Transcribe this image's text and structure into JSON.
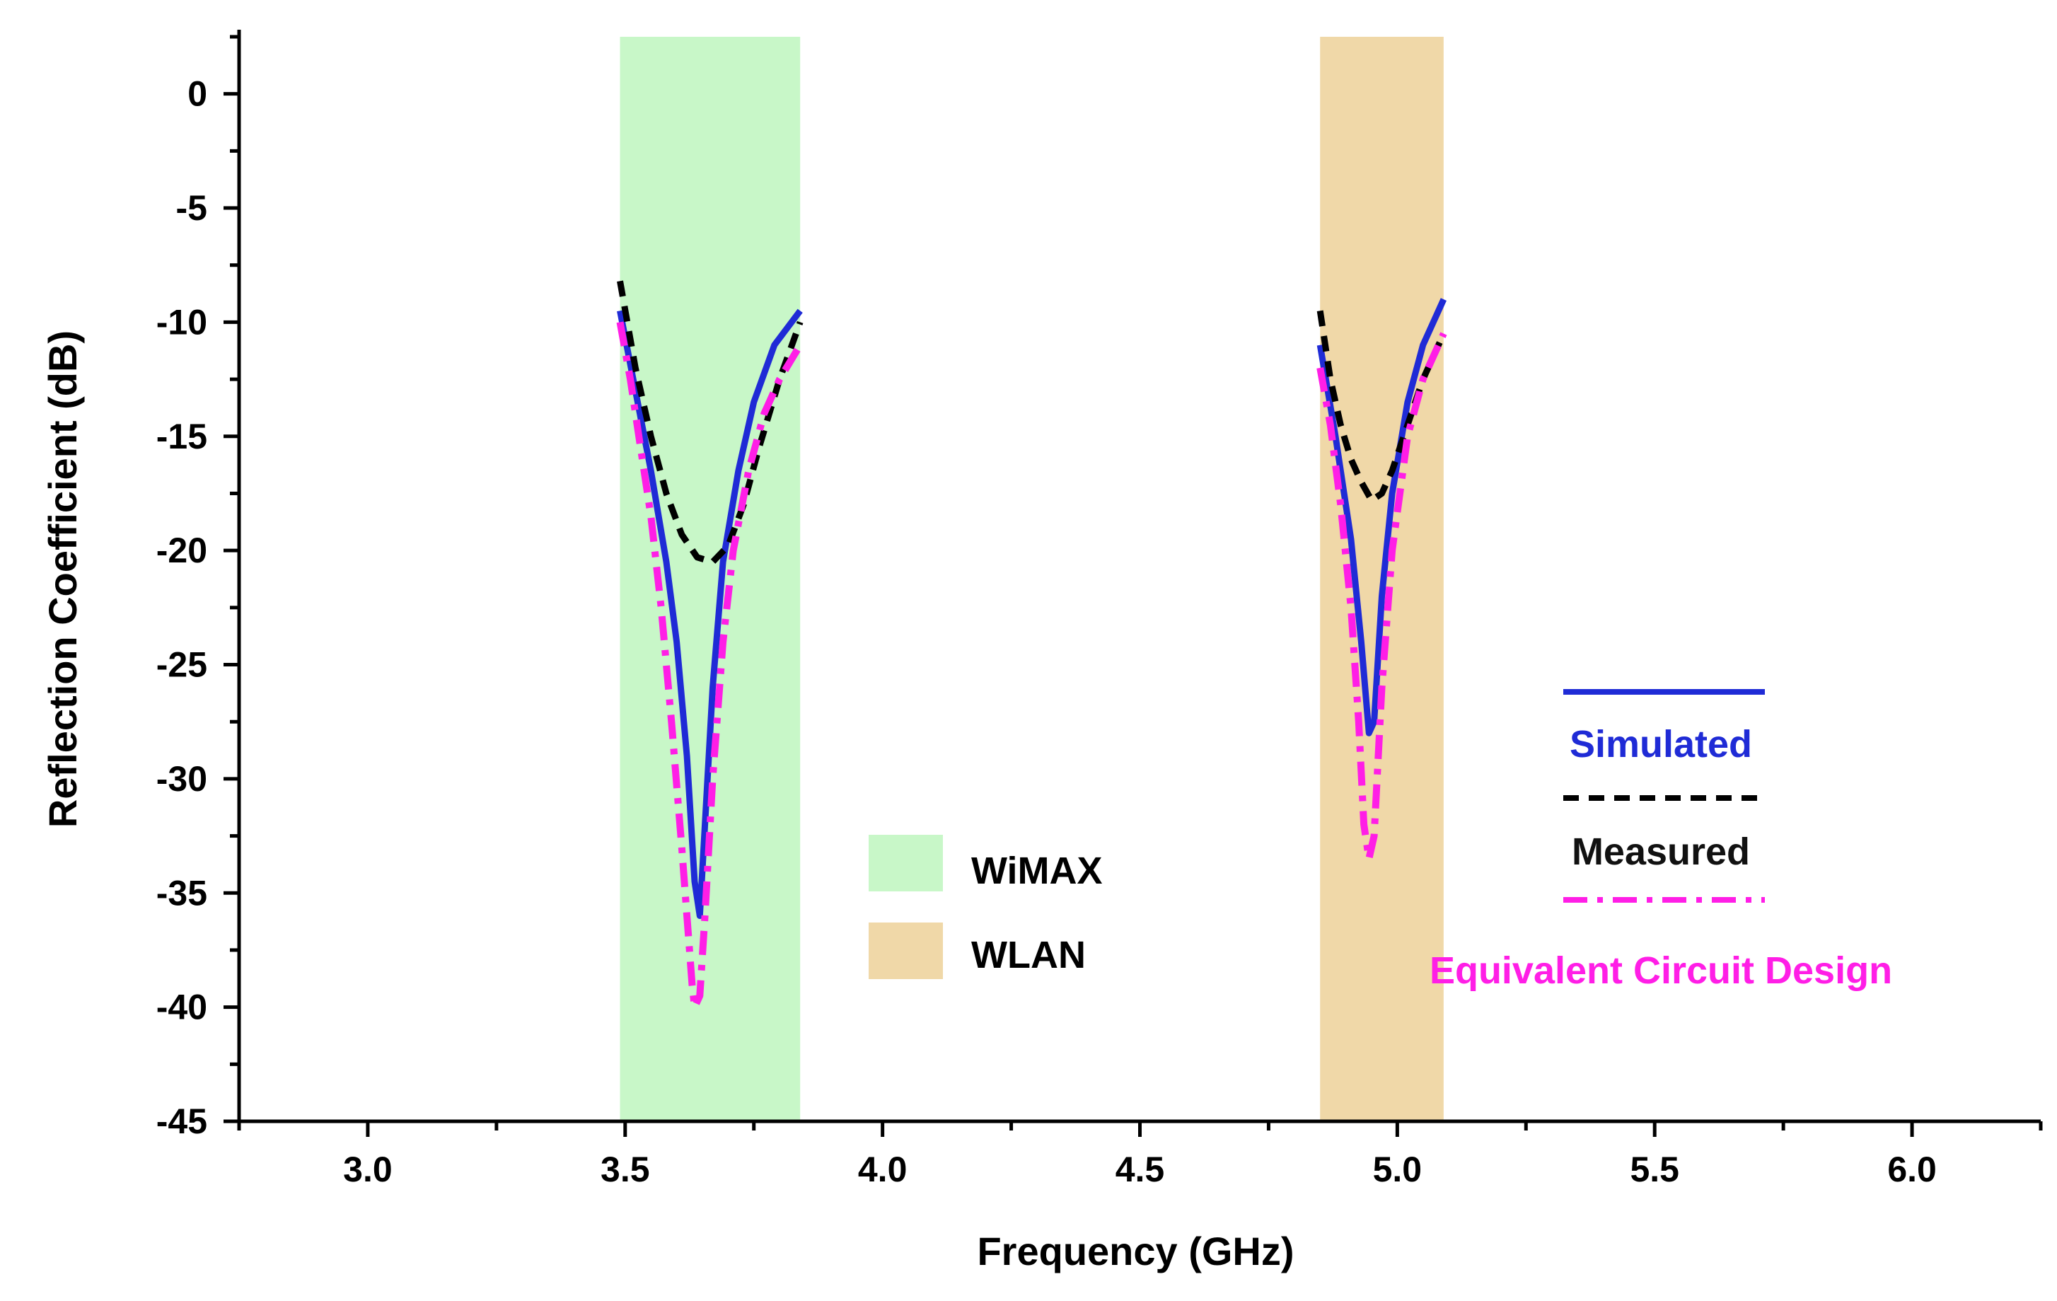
{
  "chart_data": {
    "type": "line",
    "title": "",
    "xlabel": "Frequency (GHz)",
    "ylabel": "Reflection Coefficient (dB)",
    "xlim": [
      2.75,
      6.25
    ],
    "ylim": [
      -45,
      2.5
    ],
    "x_ticks": [
      3.0,
      3.5,
      4.0,
      4.5,
      5.0,
      5.5,
      6.0
    ],
    "x_tick_labels": [
      "3.0",
      "3.5",
      "4.0",
      "4.5",
      "5.0",
      "5.5",
      "6.0"
    ],
    "y_ticks": [
      0,
      -5,
      -10,
      -15,
      -20,
      -25,
      -30,
      -35,
      -40,
      -45
    ],
    "y_tick_labels": [
      "0",
      "-5",
      "-10",
      "-15",
      "-20",
      "-25",
      "-30",
      "-35",
      "-40",
      "-45"
    ],
    "bands": [
      {
        "name": "WiMAX",
        "x_start": 3.49,
        "x_end": 3.84,
        "color": "#c8f7c8"
      },
      {
        "name": "WLAN",
        "x_start": 4.85,
        "x_end": 5.09,
        "color": "#f0d8a8"
      }
    ],
    "series": [
      {
        "name": "Simulated",
        "color": "#1f2bd6",
        "dash": "solid",
        "segments": [
          {
            "x": [
              3.49,
              3.52,
              3.55,
              3.58,
              3.6,
              3.62,
              3.635,
              3.645,
              3.655,
              3.67,
              3.69,
              3.72,
              3.75,
              3.79,
              3.84
            ],
            "y": [
              -9.5,
              -13.0,
              -16.5,
              -20.5,
              -24.0,
              -29.0,
              -34.5,
              -36.0,
              -32.0,
              -26.0,
              -20.5,
              -16.5,
              -13.5,
              -11.0,
              -9.5
            ]
          },
          {
            "x": [
              4.85,
              4.88,
              4.91,
              4.93,
              4.945,
              4.955,
              4.97,
              4.99,
              5.02,
              5.05,
              5.09
            ],
            "y": [
              -11.0,
              -15.0,
              -19.5,
              -24.0,
              -28.0,
              -27.5,
              -22.0,
              -17.5,
              -13.5,
              -11.0,
              -9.0
            ]
          }
        ]
      },
      {
        "name": "Measured",
        "color": "#000000",
        "dash": "dashed",
        "segments": [
          {
            "x": [
              3.49,
              3.52,
              3.55,
              3.58,
              3.61,
              3.64,
              3.67,
              3.7,
              3.73,
              3.76,
              3.8,
              3.84
            ],
            "y": [
              -8.2,
              -12.0,
              -15.0,
              -17.5,
              -19.3,
              -20.3,
              -20.5,
              -19.8,
              -18.0,
              -15.5,
              -12.5,
              -10.0
            ]
          },
          {
            "x": [
              4.85,
              4.87,
              4.89,
              4.91,
              4.93,
              4.95,
              4.97,
              4.99,
              5.02,
              5.05,
              5.09
            ],
            "y": [
              -9.5,
              -12.5,
              -14.5,
              -16.0,
              -17.0,
              -17.8,
              -17.5,
              -16.5,
              -14.5,
              -12.5,
              -10.5
            ]
          }
        ]
      },
      {
        "name": "Equivalent Circuit Design",
        "color": "#ff1ee6",
        "dash": "dashdot",
        "segments": [
          {
            "x": [
              3.49,
              3.51,
              3.53,
              3.55,
              3.57,
              3.59,
              3.61,
              3.63,
              3.635,
              3.645,
              3.655,
              3.67,
              3.69,
              3.71,
              3.74,
              3.77,
              3.8,
              3.84
            ],
            "y": [
              -10.0,
              -12.5,
              -15.5,
              -18.5,
              -22.5,
              -27.5,
              -33.0,
              -39.0,
              -40.0,
              -39.5,
              -36.0,
              -30.0,
              -24.0,
              -20.0,
              -16.5,
              -14.0,
              -12.5,
              -11.0
            ]
          },
          {
            "x": [
              4.85,
              4.87,
              4.89,
              4.91,
              4.925,
              4.935,
              4.945,
              4.955,
              4.97,
              4.99,
              5.02,
              5.05,
              5.09
            ],
            "y": [
              -12.0,
              -14.5,
              -18.0,
              -22.5,
              -27.5,
              -32.0,
              -33.5,
              -32.5,
              -26.0,
              -20.0,
              -15.0,
              -12.5,
              -10.5
            ]
          }
        ]
      }
    ],
    "legend": {
      "bands_position": "center",
      "series_position": "right"
    }
  }
}
